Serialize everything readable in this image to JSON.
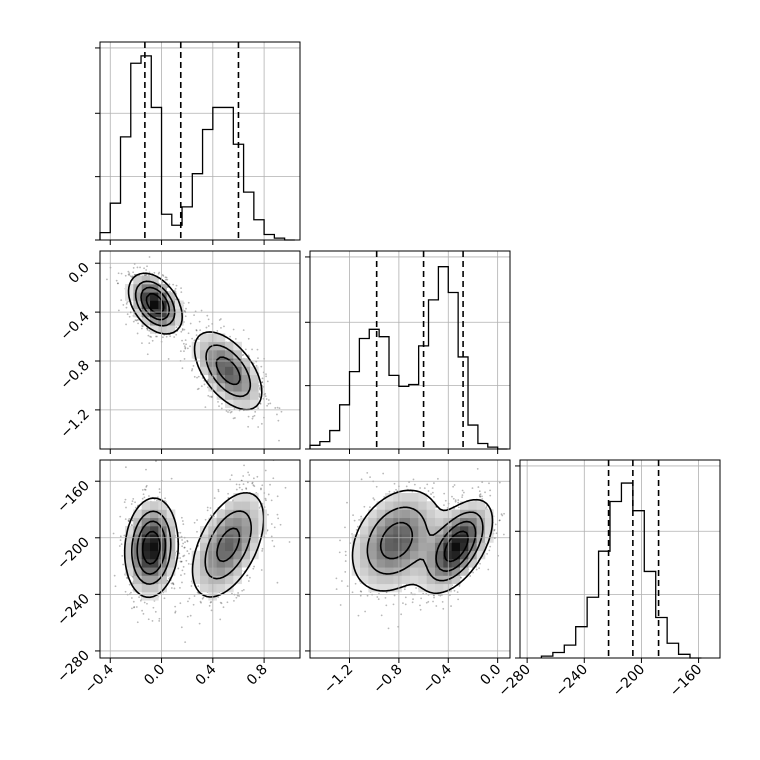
{
  "chart_data": {
    "type": "corner",
    "title": "",
    "grid": true,
    "parameters": [
      {
        "name": "",
        "range": [
          -0.48,
          1.08
        ],
        "ticks": [
          -0.4,
          0.0,
          0.4,
          0.8
        ],
        "tick_labels": [
          "−0.4",
          "0.0",
          "0.4",
          "0.8"
        ],
        "quantiles": [
          -0.13,
          0.15,
          0.6
        ],
        "histogram": {
          "bin_edges": [
            -0.48,
            -0.4,
            -0.32,
            -0.24,
            -0.16,
            -0.08,
            0.0,
            0.08,
            0.16,
            0.24,
            0.32,
            0.4,
            0.48,
            0.56,
            0.64,
            0.72,
            0.8,
            0.88,
            0.96,
            1.04
          ],
          "counts": [
            0.04,
            0.2,
            0.56,
            0.96,
            1.0,
            0.72,
            0.14,
            0.08,
            0.18,
            0.36,
            0.6,
            0.72,
            0.72,
            0.52,
            0.26,
            0.11,
            0.03,
            0.01,
            0.0
          ]
        }
      },
      {
        "name": "",
        "range": [
          -1.52,
          0.1
        ],
        "ticks": [
          -1.2,
          -0.8,
          -0.4,
          0.0
        ],
        "tick_labels": [
          "−1.2",
          "−0.8",
          "−0.4",
          "0.0"
        ],
        "quantiles": [
          -0.98,
          -0.6,
          -0.28
        ],
        "histogram": {
          "bin_edges": [
            -1.52,
            -1.44,
            -1.36,
            -1.28,
            -1.2,
            -1.12,
            -1.04,
            -0.96,
            -0.88,
            -0.8,
            -0.72,
            -0.64,
            -0.56,
            -0.48,
            -0.4,
            -0.32,
            -0.24,
            -0.16,
            -0.08,
            0.0,
            0.08
          ],
          "counts": [
            0.02,
            0.04,
            0.1,
            0.24,
            0.42,
            0.6,
            0.65,
            0.61,
            0.4,
            0.34,
            0.35,
            0.56,
            0.81,
            0.99,
            0.85,
            0.5,
            0.13,
            0.03,
            0.01,
            0.0
          ]
        }
      },
      {
        "name": "",
        "range": [
          -285,
          -145
        ],
        "ticks": [
          -280,
          -240,
          -200,
          -160
        ],
        "tick_labels": [
          "−280",
          "−240",
          "−200",
          "−160"
        ],
        "quantiles": [
          -223,
          -206,
          -188
        ],
        "histogram": {
          "bin_edges": [
            -270,
            -262,
            -254,
            -246,
            -238,
            -230,
            -222,
            -214,
            -206,
            -198,
            -190,
            -182,
            -174,
            -166,
            -158
          ],
          "counts": [
            0.01,
            0.03,
            0.07,
            0.17,
            0.33,
            0.58,
            0.85,
            0.95,
            0.8,
            0.47,
            0.22,
            0.08,
            0.02,
            0.0
          ]
        }
      }
    ],
    "joint_panels": [
      {
        "x_param": 0,
        "y_param": 1,
        "modes": [
          {
            "x": -0.05,
            "y": -0.33,
            "sx": 0.1,
            "sy": 0.12,
            "rho": -0.4,
            "weight": 1.0
          },
          {
            "x": 0.52,
            "y": -0.88,
            "sx": 0.14,
            "sy": 0.17,
            "rho": -0.55,
            "weight": 0.68
          }
        ]
      },
      {
        "x_param": 0,
        "y_param": 2,
        "modes": [
          {
            "x": -0.08,
            "y": -207,
            "sx": 0.1,
            "sy": 17,
            "rho": 0.1,
            "weight": 1.0
          },
          {
            "x": 0.52,
            "y": -205,
            "sx": 0.15,
            "sy": 20,
            "rho": 0.5,
            "weight": 0.65
          }
        ]
      },
      {
        "x_param": 1,
        "y_param": 2,
        "modes": [
          {
            "x": -0.82,
            "y": -202,
            "sx": 0.19,
            "sy": 19,
            "rho": 0.3,
            "weight": 0.7
          },
          {
            "x": -0.33,
            "y": -206,
            "sx": 0.14,
            "sy": 16,
            "rho": 0.55,
            "weight": 1.0
          }
        ]
      }
    ]
  }
}
